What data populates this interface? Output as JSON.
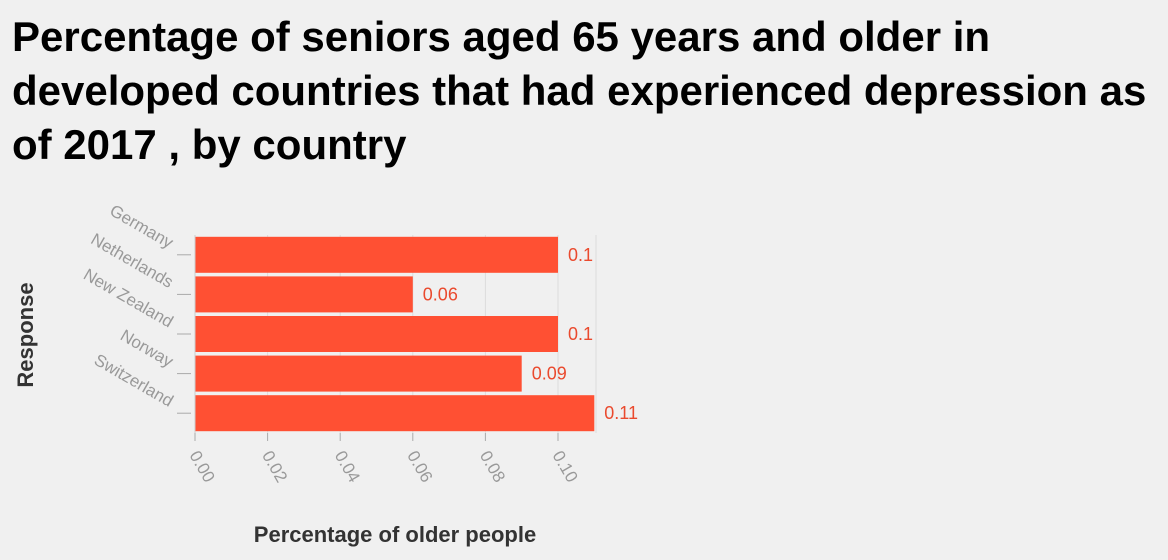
{
  "chart_data": {
    "type": "bar",
    "orientation": "horizontal",
    "title": "Percentage of seniors aged 65 years and older in developed countries that had experienced depression as of 2017 , by country",
    "xlabel": "Percentage of older people",
    "ylabel": "Response",
    "categories": [
      "Germany",
      "Netherlands",
      "New Zealand",
      "Norway",
      "Switzerland"
    ],
    "values": [
      0.1,
      0.06,
      0.1,
      0.09,
      0.11
    ],
    "data_labels": [
      "0.1",
      "0.06",
      "0.1",
      "0.09",
      "0.11"
    ],
    "x_ticks": [
      "0.00",
      "0.02",
      "0.04",
      "0.06",
      "0.08",
      "0.10"
    ],
    "xlim": [
      0,
      0.11
    ],
    "grid": true,
    "bar_color": "#ff5033",
    "label_color": "#ea4a2e"
  }
}
